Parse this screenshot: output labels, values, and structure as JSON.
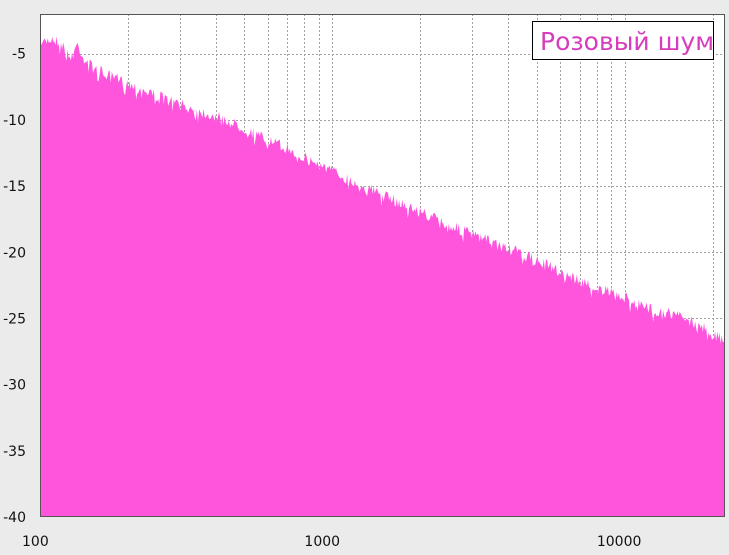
{
  "chart_data": {
    "type": "area",
    "title": "",
    "xlabel": "",
    "ylabel": "",
    "x_scale": "log",
    "xlim": [
      100,
      22000
    ],
    "ylim": [
      -40,
      -2
    ],
    "grid": true,
    "legend_position": "top-right",
    "x_ticks": [
      {
        "value": 100,
        "label": "100"
      },
      {
        "value": 1000,
        "label": "1000"
      },
      {
        "value": 10000,
        "label": "10000"
      }
    ],
    "y_ticks": [
      {
        "value": -5,
        "label": "-5"
      },
      {
        "value": -10,
        "label": "-10"
      },
      {
        "value": -15,
        "label": "-15"
      },
      {
        "value": -20,
        "label": "-20"
      },
      {
        "value": -25,
        "label": "-25"
      },
      {
        "value": -30,
        "label": "-30"
      },
      {
        "value": -35,
        "label": "-35"
      },
      {
        "value": -40,
        "label": "-40"
      }
    ],
    "series": [
      {
        "name": "Розовый шум",
        "color": "#ff55dd",
        "points": [
          [
            100,
            -4.5
          ],
          [
            105,
            -3.6
          ],
          [
            110,
            -3.4
          ],
          [
            115,
            -3.6
          ],
          [
            120,
            -4.0
          ],
          [
            126,
            -4.9
          ],
          [
            135,
            -3.8
          ],
          [
            140,
            -4.8
          ],
          [
            150,
            -5.5
          ],
          [
            170,
            -6.2
          ],
          [
            200,
            -6.8
          ],
          [
            250,
            -7.7
          ],
          [
            300,
            -8.4
          ],
          [
            400,
            -9.3
          ],
          [
            500,
            -10.2
          ],
          [
            600,
            -11.1
          ],
          [
            700,
            -11.7
          ],
          [
            800,
            -12.4
          ],
          [
            1000,
            -13.4
          ],
          [
            1200,
            -14.3
          ],
          [
            1500,
            -15.3
          ],
          [
            2000,
            -16.5
          ],
          [
            2500,
            -17.5
          ],
          [
            3000,
            -18.2
          ],
          [
            4000,
            -19.3
          ],
          [
            5000,
            -20.2
          ],
          [
            6000,
            -21.0
          ],
          [
            8000,
            -22.3
          ],
          [
            10000,
            -23.0
          ],
          [
            12000,
            -23.8
          ],
          [
            15000,
            -24.3
          ],
          [
            18000,
            -25.0
          ],
          [
            20000,
            -25.8
          ],
          [
            22000,
            -26.3
          ]
        ]
      }
    ]
  },
  "colors": {
    "plot_background": "#ffffff",
    "page_background": "#ebebeb",
    "grid": "#a0a0a0",
    "fill": "#ff55dd",
    "legend_text": "#d63cbc"
  }
}
